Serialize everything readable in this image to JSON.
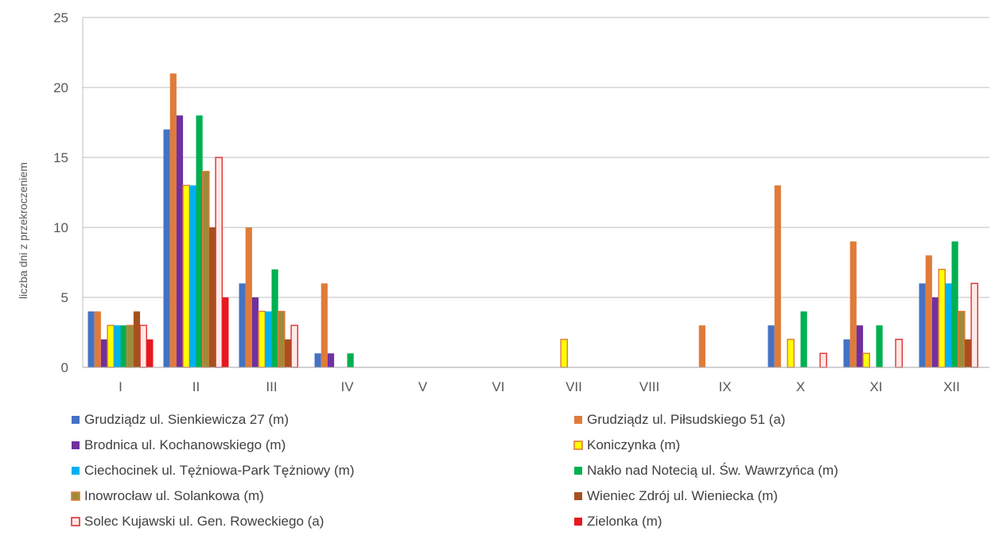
{
  "chart_data": {
    "type": "bar",
    "title": "",
    "xlabel": "",
    "ylabel": "liczba dni z przekroczeniem",
    "ylim": [
      0,
      25
    ],
    "yticks": [
      0,
      5,
      10,
      15,
      20,
      25
    ],
    "grid": true,
    "legend_position": "bottom",
    "categories": [
      "I",
      "II",
      "III",
      "IV",
      "V",
      "VI",
      "VII",
      "VIII",
      "IX",
      "X",
      "XI",
      "XII"
    ],
    "series": [
      {
        "name": "Grudziądz ul. Sienkiewicza 27 (m)",
        "color": "#4472C4",
        "values": [
          4,
          17,
          6,
          1,
          0,
          0,
          0,
          0,
          0,
          3,
          2,
          6
        ]
      },
      {
        "name": "Grudziądz ul. Piłsudskiego 51 (a)",
        "color": "#E07B39",
        "values": [
          4,
          21,
          10,
          6,
          0,
          0,
          0,
          0,
          3,
          13,
          9,
          8
        ]
      },
      {
        "name": "Brodnica ul. Kochanowskiego (m)",
        "color": "#7030A0",
        "values": [
          2,
          18,
          5,
          1,
          0,
          0,
          0,
          0,
          0,
          0,
          3,
          5
        ]
      },
      {
        "name": "Koniczynka (m)",
        "color": "#FFFF00",
        "stroke": "#E07B39",
        "values": [
          3,
          13,
          4,
          0,
          0,
          0,
          2,
          0,
          0,
          2,
          1,
          7
        ]
      },
      {
        "name": "Ciechocinek ul. Tężniowa-Park Tężniowy (m)",
        "color": "#00B0F0",
        "values": [
          3,
          13,
          4,
          0,
          0,
          0,
          0,
          0,
          0,
          0,
          0,
          6
        ]
      },
      {
        "name": "Nakło nad Notecią ul. Św. Wawrzyńca (m)",
        "color": "#00B050",
        "values": [
          3,
          18,
          7,
          1,
          0,
          0,
          0,
          0,
          0,
          4,
          3,
          9
        ]
      },
      {
        "name": "Inowrocław ul. Solankowa (m)",
        "color": "#9C8B3A",
        "stroke": "#E07B39",
        "values": [
          3,
          14,
          4,
          0,
          0,
          0,
          0,
          0,
          0,
          0,
          0,
          4
        ]
      },
      {
        "name": "Wieniec Zdrój ul. Wieniecka (m)",
        "color": "#A5501E",
        "values": [
          4,
          10,
          2,
          0,
          0,
          0,
          0,
          0,
          0,
          0,
          0,
          2
        ]
      },
      {
        "name": "Solec Kujawski ul. Gen. Roweckiego (a)",
        "color": "#FDE9E7",
        "stroke": "#E03030",
        "values": [
          3,
          15,
          3,
          0,
          0,
          0,
          0,
          0,
          0,
          1,
          2,
          6
        ]
      },
      {
        "name": "Zielonka (m)",
        "color": "#E8171F",
        "values": [
          2,
          5,
          0,
          0,
          0,
          0,
          0,
          0,
          0,
          0,
          0,
          0
        ]
      }
    ]
  }
}
